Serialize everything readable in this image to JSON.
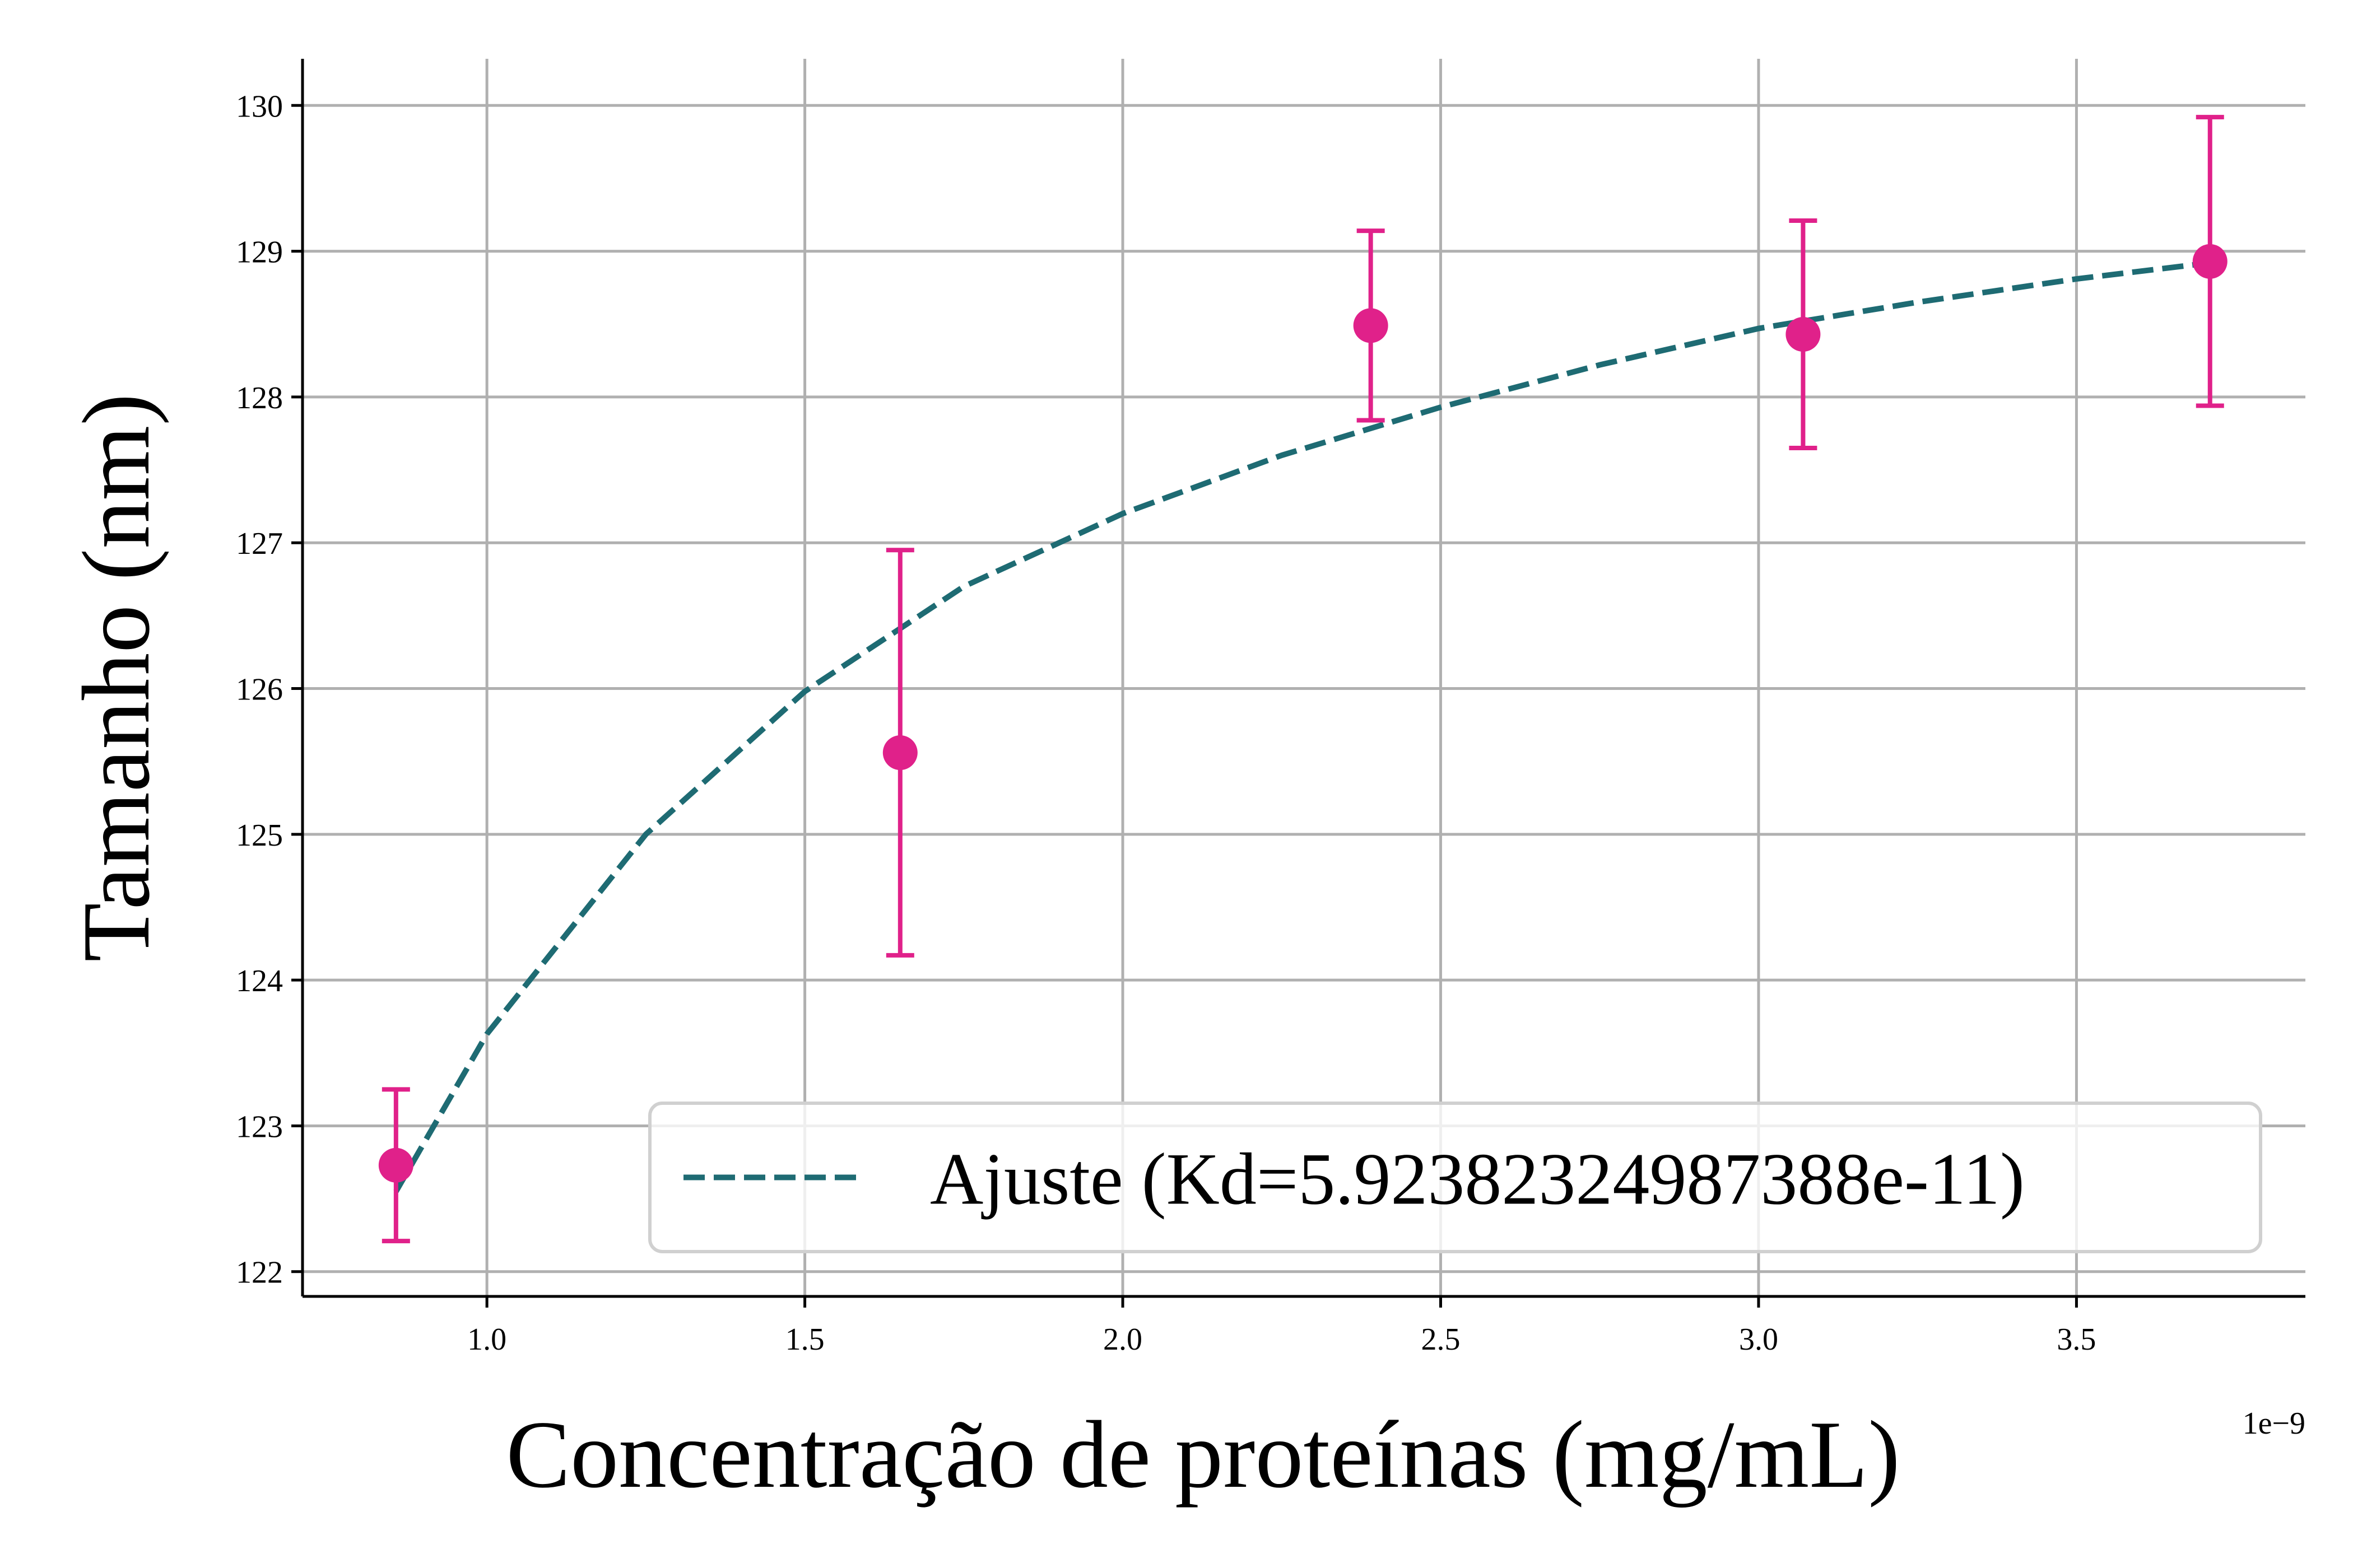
{
  "chart_data": {
    "type": "scatter",
    "xlabel": "Concentração de proteínas (mg/mL)",
    "ylabel": "Tamanho (nm)",
    "x_offset_label": "1e−9",
    "x_scale_factor": 1e-09,
    "xlim": [
      7.1e-10,
      3.86e-09
    ],
    "ylim": [
      121.83,
      130.32
    ],
    "x_ticks": [
      1e-09,
      1.5e-09,
      2e-09,
      2.5e-09,
      3e-09,
      3.5e-09
    ],
    "x_tick_labels": [
      "1.0",
      "1.5",
      "2.0",
      "2.5",
      "3.0",
      "3.5"
    ],
    "y_ticks": [
      122,
      123,
      124,
      125,
      126,
      127,
      128,
      129,
      130
    ],
    "y_tick_labels": [
      "122",
      "123",
      "124",
      "125",
      "126",
      "127",
      "128",
      "129",
      "130"
    ],
    "grid": true,
    "legend_position": "lower-right",
    "series": [
      {
        "kind": "errorbar-points",
        "color": "#e0218a",
        "x": [
          8.57e-10,
          1.65e-09,
          2.39e-09,
          3.07e-09,
          3.71e-09
        ],
        "y": [
          122.73,
          125.56,
          128.49,
          128.43,
          128.93
        ],
        "yerr": [
          0.52,
          1.39,
          0.65,
          0.78,
          0.99
        ]
      },
      {
        "name": "Ajuste (Kd=5.92382324987388e-11)",
        "kind": "fit-line",
        "color": "#1e6b73",
        "dashed": true,
        "x": [
          8.57e-10,
          1e-09,
          1.25e-09,
          1.5e-09,
          1.75e-09,
          2e-09,
          2.25e-09,
          2.5e-09,
          2.75e-09,
          3e-09,
          3.25e-09,
          3.5e-09,
          3.71e-09
        ],
        "y": [
          122.55,
          123.63,
          125.0,
          125.98,
          126.7,
          127.2,
          127.6,
          127.93,
          128.22,
          128.47,
          128.65,
          128.81,
          128.92
        ]
      }
    ]
  }
}
